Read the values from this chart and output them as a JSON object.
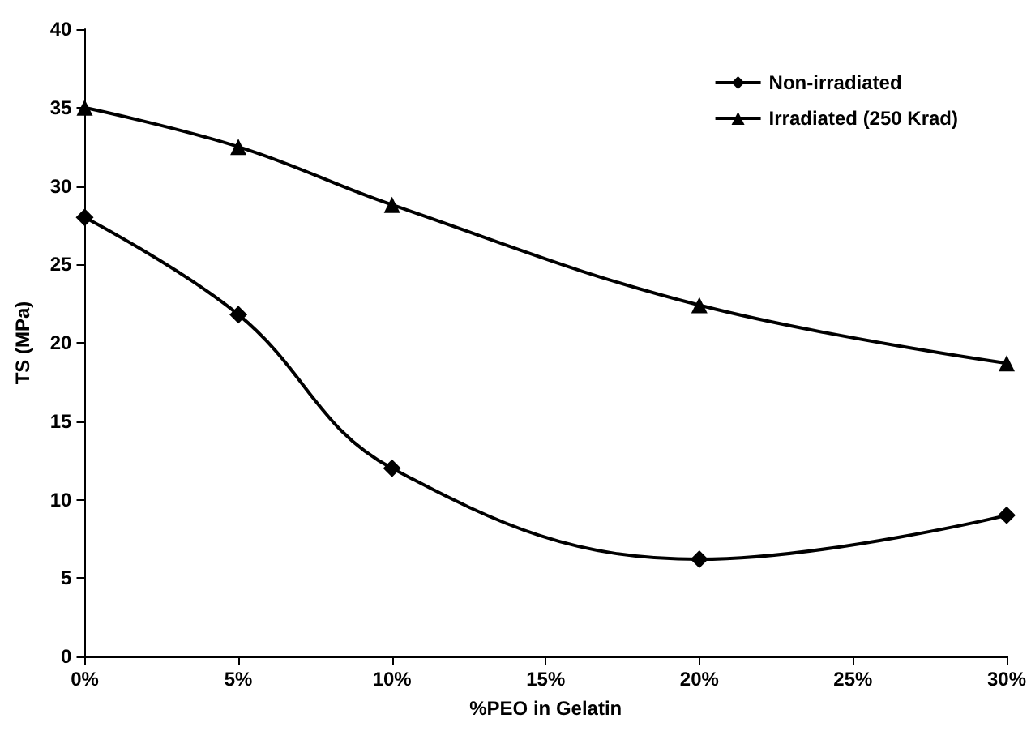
{
  "chart_data": {
    "type": "line",
    "xlabel": "%PEO in Gelatin",
    "ylabel": "TS (MPa)",
    "x": [
      0,
      5,
      10,
      20,
      30
    ],
    "series": [
      {
        "name": "Non-irradiated",
        "color": "#000000",
        "marker": "diamond",
        "values": [
          28,
          21.8,
          12,
          6.2,
          9
        ]
      },
      {
        "name": "Irradiated (250 Krad)",
        "color": "#000000",
        "marker": "triangle",
        "values": [
          35,
          32.5,
          28.8,
          22.4,
          18.7
        ]
      }
    ],
    "xlim": [
      0,
      30
    ],
    "xticks": [
      {
        "value": 0,
        "label": "0%"
      },
      {
        "value": 5,
        "label": "5%"
      },
      {
        "value": 10,
        "label": "10%"
      },
      {
        "value": 15,
        "label": "15%"
      },
      {
        "value": 20,
        "label": "20%"
      },
      {
        "value": 25,
        "label": "25%"
      },
      {
        "value": 30,
        "label": "30%"
      }
    ],
    "ylim": [
      0,
      40
    ],
    "yticks": [
      0,
      5,
      10,
      15,
      20,
      25,
      30,
      35,
      40
    ],
    "grid": false,
    "legend": "top right",
    "line_style": "solid"
  }
}
